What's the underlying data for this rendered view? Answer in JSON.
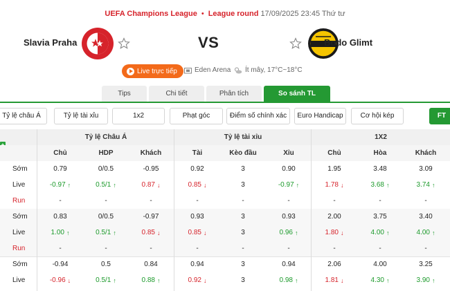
{
  "header": {
    "league": "UEFA Champions League",
    "round": "League round",
    "datetime": "17/09/2025 23:45 Thứ tư",
    "vs": "VS",
    "home_team": "Slavia Praha",
    "away_team": "Bodo Glimt",
    "live_label": "Live trực tiếp",
    "venue": "Eden Arena",
    "weather": "Ít mây, 17°C~18°C"
  },
  "tabs": [
    "Tips",
    "Chi tiết",
    "Phân tích",
    "So sánh TL"
  ],
  "active_tab": 3,
  "bet_types": [
    "Tỷ lệ châu Á",
    "Tỷ lệ tài xỉu",
    "1x2",
    "Phạt góc",
    "Điểm số chính xác",
    "Euro Handicap",
    "Cơ hội kép",
    "FT"
  ],
  "table": {
    "groups": [
      "Tỷ lệ Châu Á",
      "Tỷ lệ tài xỉu",
      "1X2"
    ],
    "columns": [
      "Chủ",
      "HDP",
      "Khách",
      "Tài",
      "Kèo đầu",
      "Xỉu",
      "Chủ",
      "Hòa",
      "Khách"
    ],
    "rows": [
      {
        "label": "Sớm",
        "type": "early",
        "cells": [
          {
            "v": "0.79",
            "d": ""
          },
          {
            "v": "0/0.5",
            "d": ""
          },
          {
            "v": "-0.95",
            "d": ""
          },
          {
            "v": "0.92",
            "d": ""
          },
          {
            "v": "3",
            "d": ""
          },
          {
            "v": "0.90",
            "d": ""
          },
          {
            "v": "1.95",
            "d": ""
          },
          {
            "v": "3.48",
            "d": ""
          },
          {
            "v": "3.09",
            "d": ""
          }
        ]
      },
      {
        "label": "Live",
        "type": "live",
        "cells": [
          {
            "v": "-0.97",
            "d": "up"
          },
          {
            "v": "0.5/1",
            "d": "up"
          },
          {
            "v": "0.87",
            "d": "down"
          },
          {
            "v": "0.85",
            "d": "down"
          },
          {
            "v": "3",
            "d": ""
          },
          {
            "v": "-0.97",
            "d": "up"
          },
          {
            "v": "1.78",
            "d": "down"
          },
          {
            "v": "3.68",
            "d": "up"
          },
          {
            "v": "3.74",
            "d": "up"
          }
        ]
      },
      {
        "label": "Run",
        "type": "run",
        "cells": [
          {
            "v": "-",
            "d": ""
          },
          {
            "v": "-",
            "d": ""
          },
          {
            "v": "-",
            "d": ""
          },
          {
            "v": "-",
            "d": ""
          },
          {
            "v": "-",
            "d": ""
          },
          {
            "v": "-",
            "d": ""
          },
          {
            "v": "-",
            "d": ""
          },
          {
            "v": "-",
            "d": ""
          },
          {
            "v": "-",
            "d": ""
          }
        ]
      },
      {
        "label": "Sớm",
        "type": "early",
        "cells": [
          {
            "v": "0.83",
            "d": ""
          },
          {
            "v": "0/0.5",
            "d": ""
          },
          {
            "v": "-0.97",
            "d": ""
          },
          {
            "v": "0.93",
            "d": ""
          },
          {
            "v": "3",
            "d": ""
          },
          {
            "v": "0.93",
            "d": ""
          },
          {
            "v": "2.00",
            "d": ""
          },
          {
            "v": "3.75",
            "d": ""
          },
          {
            "v": "3.40",
            "d": ""
          }
        ]
      },
      {
        "label": "Live",
        "type": "live",
        "cells": [
          {
            "v": "1.00",
            "d": "up"
          },
          {
            "v": "0.5/1",
            "d": "up"
          },
          {
            "v": "0.85",
            "d": "down"
          },
          {
            "v": "0.85",
            "d": "down"
          },
          {
            "v": "3",
            "d": ""
          },
          {
            "v": "0.96",
            "d": "up"
          },
          {
            "v": "1.80",
            "d": "down"
          },
          {
            "v": "4.00",
            "d": "up"
          },
          {
            "v": "4.00",
            "d": "up"
          }
        ]
      },
      {
        "label": "Run",
        "type": "run",
        "cells": [
          {
            "v": "-",
            "d": ""
          },
          {
            "v": "-",
            "d": ""
          },
          {
            "v": "-",
            "d": ""
          },
          {
            "v": "-",
            "d": ""
          },
          {
            "v": "-",
            "d": ""
          },
          {
            "v": "-",
            "d": ""
          },
          {
            "v": "-",
            "d": ""
          },
          {
            "v": "-",
            "d": ""
          },
          {
            "v": "-",
            "d": ""
          }
        ]
      },
      {
        "label": "Sớm",
        "type": "early",
        "cells": [
          {
            "v": "-0.94",
            "d": ""
          },
          {
            "v": "0.5",
            "d": ""
          },
          {
            "v": "0.84",
            "d": ""
          },
          {
            "v": "0.94",
            "d": ""
          },
          {
            "v": "3",
            "d": ""
          },
          {
            "v": "0.94",
            "d": ""
          },
          {
            "v": "2.06",
            "d": ""
          },
          {
            "v": "4.00",
            "d": ""
          },
          {
            "v": "3.25",
            "d": ""
          }
        ]
      },
      {
        "label": "Live",
        "type": "live",
        "cells": [
          {
            "v": "-0.96",
            "d": "down"
          },
          {
            "v": "0.5/1",
            "d": "up"
          },
          {
            "v": "0.88",
            "d": "up"
          },
          {
            "v": "0.92",
            "d": "down"
          },
          {
            "v": "3",
            "d": ""
          },
          {
            "v": "0.98",
            "d": "up"
          },
          {
            "v": "1.81",
            "d": "down"
          },
          {
            "v": "4.30",
            "d": "up"
          },
          {
            "v": "3.90",
            "d": "up"
          }
        ]
      }
    ]
  },
  "colors": {
    "accent_green": "#249933",
    "live_orange": "#f36a1a",
    "league_red": "#d6232b",
    "up": "#1c9a2b",
    "down": "#d6232b"
  },
  "icons": {
    "favorite": "star-outline-icon",
    "venue": "stadium-icon",
    "weather": "partly-cloudy-icon",
    "live": "play-icon",
    "expand": "plus-icon"
  }
}
